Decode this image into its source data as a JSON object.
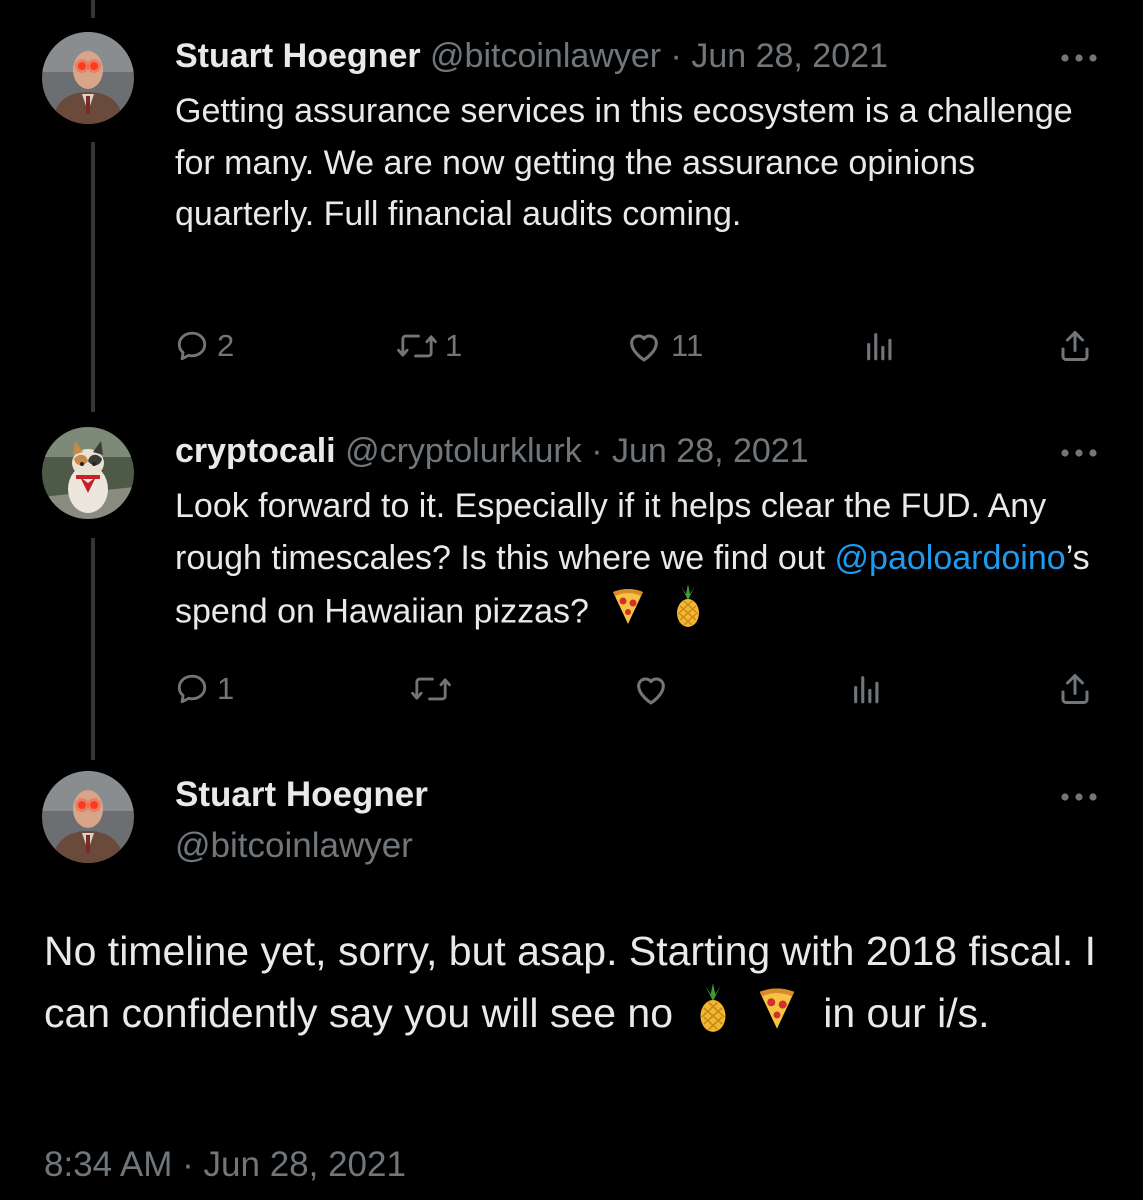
{
  "tweets": [
    {
      "name": "Stuart Hoegner",
      "handle": "@bitcoinlawyer",
      "date": "Jun 28, 2021",
      "text": "Getting assurance services in this ecosystem is a challenge for many. We are now getting the assurance opinions quarterly. Full financial audits coming.",
      "replies": "2",
      "retweets": "1",
      "likes": "11"
    },
    {
      "name": "cryptocali",
      "handle": "@cryptolurklurk",
      "date": "Jun 28, 2021",
      "text_before": "Look forward to it. Especially if it helps clear the FUD. Any rough timescales? Is this where we find out ",
      "mention": "@paoloardoino",
      "text_after": "’s spend on Hawaiian pizzas?",
      "emojis": [
        "pizza-icon",
        "pineapple-icon"
      ],
      "replies": "1",
      "retweets": "",
      "likes": ""
    }
  ],
  "main_tweet": {
    "name": "Stuart Hoegner",
    "handle": "@bitcoinlawyer",
    "text_before": "No timeline yet, sorry, but asap. Starting with 2018 fiscal. I can confidently say you will see no",
    "emojis": [
      "pineapple-icon",
      "pizza-icon"
    ],
    "text_after": "in our i/s.",
    "time": "8:34 AM",
    "date": "Jun 28, 2021"
  },
  "separator": "·",
  "colors": {
    "background": "#000000",
    "text": "#e7e9ea",
    "secondary": "#71767b",
    "link": "#1d9bf0",
    "thread_line": "#333639"
  }
}
